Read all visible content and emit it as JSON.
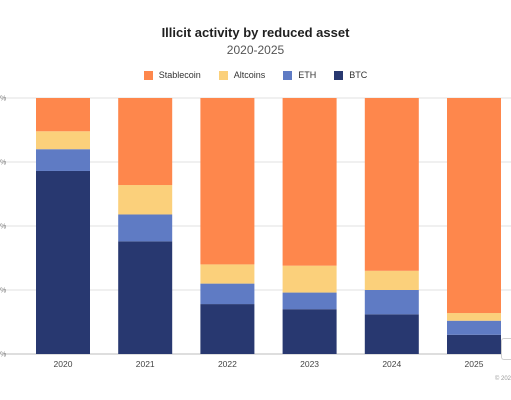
{
  "chart_data": {
    "type": "bar",
    "stacked": true,
    "normalized": true,
    "title": "Illicit activity by reduced asset",
    "subtitle": "2020-2025",
    "categories": [
      "2020",
      "2021",
      "2022",
      "2023",
      "2024",
      "2025"
    ],
    "series": [
      {
        "name": "BTC",
        "color": "#283870",
        "values": [
          71.5,
          44.0,
          19.5,
          17.5,
          15.5,
          7.5
        ]
      },
      {
        "name": "ETH",
        "color": "#5f7bc4",
        "values": [
          8.5,
          10.5,
          8.0,
          6.5,
          9.5,
          5.5
        ]
      },
      {
        "name": "Altcoins",
        "color": "#fbd07b",
        "values": [
          7.0,
          11.5,
          7.5,
          10.5,
          7.5,
          3.0
        ]
      },
      {
        "name": "Stablecoin",
        "color": "#fe874c",
        "values": [
          13.0,
          34.0,
          65.0,
          65.5,
          67.5,
          84.0
        ]
      }
    ],
    "legend_order": [
      "Stablecoin",
      "Altcoins",
      "ETH",
      "BTC"
    ],
    "ylim": [
      0,
      100
    ],
    "grid": true,
    "legend_position": "top-center",
    "ytick_labels": [
      "%",
      "%",
      "%",
      "%",
      "%"
    ],
    "copyright": "© 202"
  }
}
